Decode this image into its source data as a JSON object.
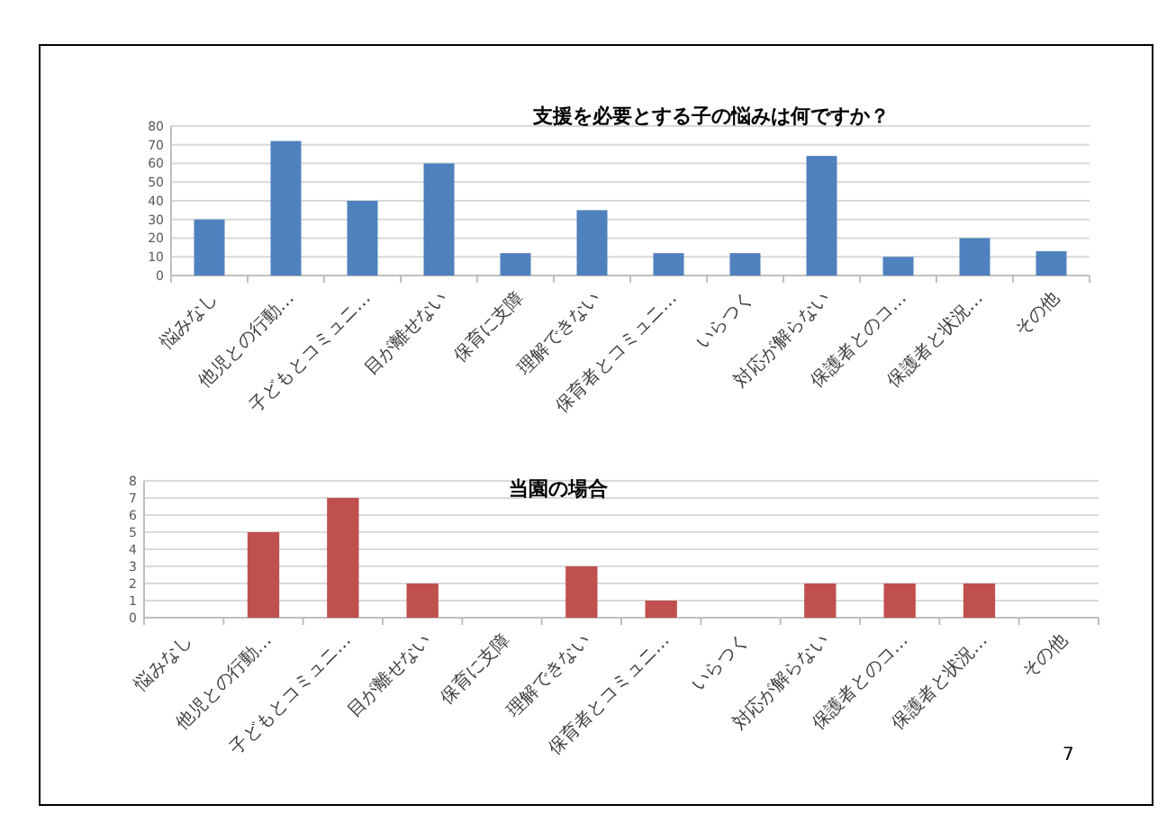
{
  "chart_data": [
    {
      "type": "bar",
      "title": "支援を必要とする子の悩みは何ですか？",
      "categories": [
        "悩みなし",
        "他児との行動…",
        "子どもとコミュニ…",
        "目が離せない",
        "保育に支障",
        "理解できない",
        "保育者とコミュニ…",
        "いらつく",
        "対応が解らない",
        "保護者とのコ…",
        "保護者と状況…",
        "その他"
      ],
      "series": [
        {
          "color": "#4f81bd",
          "values": [
            30,
            72,
            40,
            60,
            12,
            35,
            12,
            12,
            64,
            10,
            20,
            13
          ]
        }
      ],
      "ylim": [
        0,
        80
      ],
      "yticks": [
        0,
        10,
        20,
        30,
        40,
        50,
        60,
        70,
        80
      ],
      "grid": "y"
    },
    {
      "type": "bar",
      "title": "当園の場合",
      "categories": [
        "悩みなし",
        "他児との行動…",
        "子どもとコミュニ…",
        "目が離せない",
        "保育に支障",
        "理解できない",
        "保育者とコミュニ…",
        "いらつく",
        "対応が解らない",
        "保護者とのコ…",
        "保護者と状況…",
        "その他"
      ],
      "series": [
        {
          "color": "#c0504d",
          "values": [
            0,
            5,
            7,
            2,
            0,
            3,
            1,
            0,
            2,
            2,
            2,
            0
          ]
        }
      ],
      "ylim": [
        0,
        8
      ],
      "yticks": [
        0,
        1,
        2,
        3,
        4,
        5,
        6,
        7,
        8
      ],
      "grid": "y",
      "annotations": [
        "7"
      ]
    }
  ]
}
